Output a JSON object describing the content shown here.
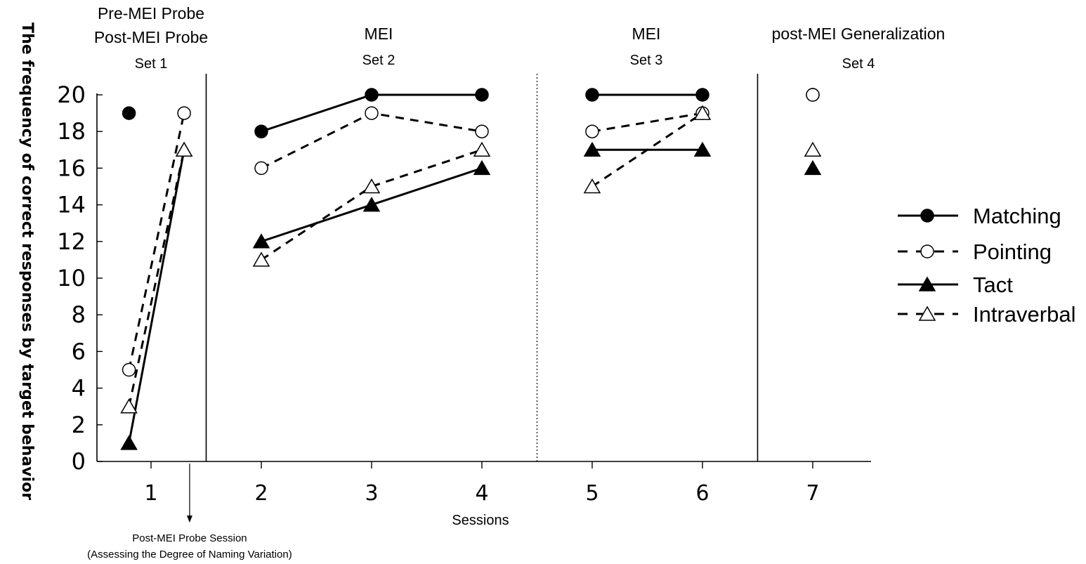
{
  "chart_data": {
    "type": "line",
    "title": "",
    "xlabel": "Sessions",
    "ylabel": "The frequency of correct responses by target behavior",
    "ylim": [
      0,
      20
    ],
    "xlim": [
      0.5,
      7.5
    ],
    "yticks": [
      "0",
      "2",
      "4",
      "6",
      "8",
      "10",
      "12",
      "14",
      "16",
      "18",
      "20"
    ],
    "xticks": [
      "1",
      "2",
      "3",
      "4",
      "5",
      "6",
      "7"
    ],
    "grid": false,
    "legend_position": "right",
    "phases": [
      {
        "lines": [
          "Pre-MEI Probe",
          "Post-MEI Probe",
          "Set 1"
        ]
      },
      {
        "lines": [
          "MEI",
          "Set 2"
        ]
      },
      {
        "lines": [
          "MEI",
          "Set 3"
        ]
      },
      {
        "lines": [
          "post-MEI Generalization",
          "Set 4"
        ]
      }
    ],
    "phase_dividers": [
      {
        "x": 1.5,
        "style": "solid"
      },
      {
        "x": 4.5,
        "style": "dotted"
      },
      {
        "x": 6.5,
        "style": "solid"
      }
    ],
    "annotation": {
      "x": 1.35,
      "lines": [
        "Post-MEI Probe Session",
        "(Assessing the Degree of Naming Variation)"
      ]
    },
    "series": [
      {
        "name": "Matching",
        "marker": "filled-circle",
        "line": "solid",
        "segments": [
          [
            [
              0.8,
              19
            ]
          ],
          [
            [
              2,
              18
            ],
            [
              3,
              20
            ],
            [
              4,
              20
            ]
          ],
          [
            [
              5,
              20
            ],
            [
              6,
              20
            ]
          ],
          [
            [
              7,
              20
            ]
          ]
        ]
      },
      {
        "name": "Pointing",
        "marker": "open-circle",
        "line": "dashed",
        "segments": [
          [
            [
              0.8,
              5
            ],
            [
              1.3,
              19
            ]
          ],
          [
            [
              2,
              16
            ],
            [
              3,
              19
            ],
            [
              4,
              18
            ]
          ],
          [
            [
              5,
              18
            ],
            [
              6,
              19
            ]
          ],
          [
            [
              7,
              20
            ]
          ]
        ]
      },
      {
        "name": "Tact",
        "marker": "filled-triangle",
        "line": "solid",
        "segments": [
          [
            [
              0.8,
              1
            ],
            [
              1.3,
              17
            ]
          ],
          [
            [
              2,
              12
            ],
            [
              3,
              14
            ],
            [
              4,
              16
            ]
          ],
          [
            [
              5,
              17
            ],
            [
              6,
              17
            ]
          ],
          [
            [
              7,
              16
            ]
          ]
        ]
      },
      {
        "name": "Intraverbal",
        "marker": "open-triangle",
        "line": "dashed",
        "segments": [
          [
            [
              0.8,
              3
            ],
            [
              1.3,
              17
            ]
          ],
          [
            [
              2,
              11
            ],
            [
              3,
              15
            ],
            [
              4,
              17
            ]
          ],
          [
            [
              5,
              15
            ],
            [
              6,
              19
            ]
          ],
          [
            [
              7,
              17
            ]
          ]
        ]
      }
    ]
  }
}
